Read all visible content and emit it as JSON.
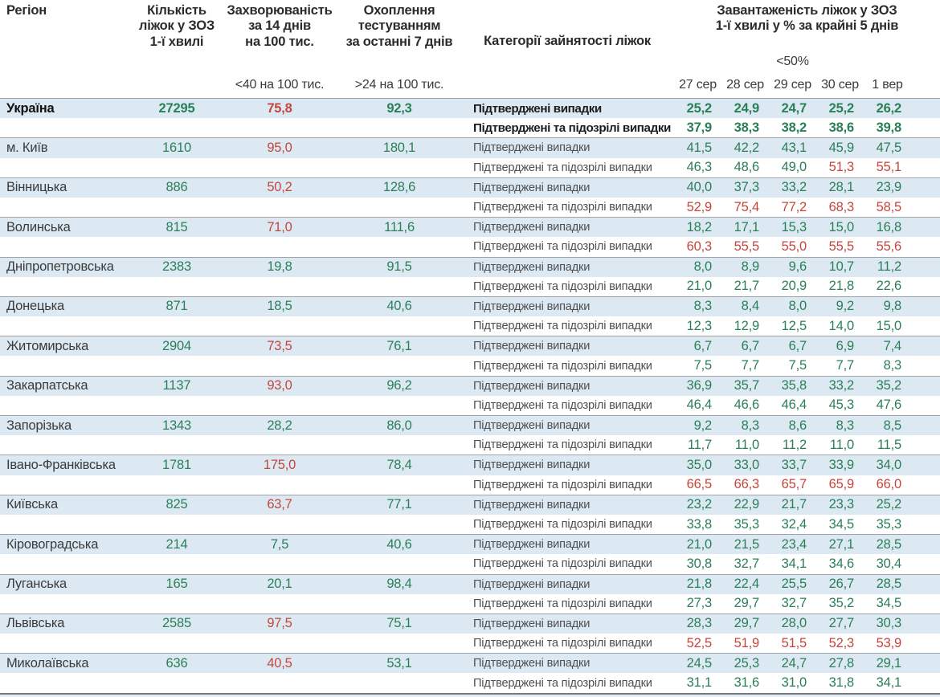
{
  "colors": {
    "green": "#2b7f57",
    "red": "#c5463d",
    "row_highlight": "#dce9f3"
  },
  "thresholds": {
    "incidence_red_at": 40,
    "load_red_at": 50
  },
  "columns": {
    "region_label": "Регіон",
    "beds_label": "Кількість\nліжок у ЗОЗ\n1-ї хвилі",
    "incidence_label": "Захворюваність\nза 14 днів\nна 100 тис.",
    "testing_label": "Охоплення\nтестуванням\nза останні 7 днів",
    "category_label": "Категорії зайнятості ліжок",
    "load_label": "Завантаженість ліжок у ЗОЗ\n1-ї хвилі у % за крайні 5 днів",
    "incidence_threshold_label": "<40 на 100 тис.",
    "testing_threshold_label": ">24 на 100 тис.",
    "load_threshold_label": "<50%",
    "dates": [
      "27 сер",
      "28 сер",
      "29 сер",
      "30 сер",
      "1 вер"
    ]
  },
  "row_labels": {
    "confirmed": "Підтверджені випадки",
    "confirmed_suspected": "Підтверджені та підозрілі випадки"
  },
  "regions": [
    {
      "name": "Україна",
      "bold": true,
      "beds": "27295",
      "incidence": "75,8",
      "testing": "92,3",
      "confirmed": [
        "25,2",
        "24,9",
        "24,7",
        "25,2",
        "26,2"
      ],
      "confirmed_suspected": [
        "37,9",
        "38,3",
        "38,2",
        "38,6",
        "39,8"
      ]
    },
    {
      "name": "м. Київ",
      "bold": false,
      "beds": "1610",
      "incidence": "95,0",
      "testing": "180,1",
      "confirmed": [
        "41,5",
        "42,2",
        "43,1",
        "45,9",
        "47,5"
      ],
      "confirmed_suspected": [
        "46,3",
        "48,6",
        "49,0",
        "51,3",
        "55,1"
      ]
    },
    {
      "name": "Вінницька",
      "bold": false,
      "beds": "886",
      "incidence": "50,2",
      "testing": "128,6",
      "confirmed": [
        "40,0",
        "37,3",
        "33,2",
        "28,1",
        "23,9"
      ],
      "confirmed_suspected": [
        "52,9",
        "75,4",
        "77,2",
        "68,3",
        "58,5"
      ]
    },
    {
      "name": "Волинська",
      "bold": false,
      "beds": "815",
      "incidence": "71,0",
      "testing": "111,6",
      "confirmed": [
        "18,2",
        "17,1",
        "15,3",
        "15,0",
        "16,8"
      ],
      "confirmed_suspected": [
        "60,3",
        "55,5",
        "55,0",
        "55,5",
        "55,6"
      ]
    },
    {
      "name": "Дніпропетровська",
      "bold": false,
      "beds": "2383",
      "incidence": "19,8",
      "testing": "91,5",
      "confirmed": [
        "8,0",
        "8,9",
        "9,6",
        "10,7",
        "11,2"
      ],
      "confirmed_suspected": [
        "21,0",
        "21,7",
        "20,9",
        "21,8",
        "22,6"
      ]
    },
    {
      "name": "Донецька",
      "bold": false,
      "beds": "871",
      "incidence": "18,5",
      "testing": "40,6",
      "confirmed": [
        "8,3",
        "8,4",
        "8,0",
        "9,2",
        "9,8"
      ],
      "confirmed_suspected": [
        "12,3",
        "12,9",
        "12,5",
        "14,0",
        "15,0"
      ]
    },
    {
      "name": "Житомирська",
      "bold": false,
      "beds": "2904",
      "incidence": "73,5",
      "testing": "76,1",
      "confirmed": [
        "6,7",
        "6,7",
        "6,7",
        "6,9",
        "7,4"
      ],
      "confirmed_suspected": [
        "7,5",
        "7,7",
        "7,5",
        "7,7",
        "8,3"
      ]
    },
    {
      "name": "Закарпатська",
      "bold": false,
      "beds": "1137",
      "incidence": "93,0",
      "testing": "96,2",
      "confirmed": [
        "36,9",
        "35,7",
        "35,8",
        "33,2",
        "35,2"
      ],
      "confirmed_suspected": [
        "46,4",
        "46,6",
        "46,4",
        "45,3",
        "47,6"
      ]
    },
    {
      "name": "Запорізька",
      "bold": false,
      "beds": "1343",
      "incidence": "28,2",
      "testing": "86,0",
      "confirmed": [
        "9,2",
        "8,3",
        "8,6",
        "8,3",
        "8,5"
      ],
      "confirmed_suspected": [
        "11,7",
        "11,0",
        "11,2",
        "11,0",
        "11,5"
      ]
    },
    {
      "name": "Івано-Франківська",
      "bold": false,
      "beds": "1781",
      "incidence": "175,0",
      "testing": "78,4",
      "confirmed": [
        "35,0",
        "33,0",
        "33,7",
        "33,9",
        "34,0"
      ],
      "confirmed_suspected": [
        "66,5",
        "66,3",
        "65,7",
        "65,9",
        "66,0"
      ]
    },
    {
      "name": "Київська",
      "bold": false,
      "beds": "825",
      "incidence": "63,7",
      "testing": "77,1",
      "confirmed": [
        "23,2",
        "22,9",
        "21,7",
        "23,3",
        "25,2"
      ],
      "confirmed_suspected": [
        "33,8",
        "35,3",
        "32,4",
        "34,5",
        "35,3"
      ]
    },
    {
      "name": "Кіровоградська",
      "bold": false,
      "beds": "214",
      "incidence": "7,5",
      "testing": "40,6",
      "confirmed": [
        "21,0",
        "21,5",
        "23,4",
        "27,1",
        "28,5"
      ],
      "confirmed_suspected": [
        "30,8",
        "32,7",
        "34,1",
        "34,6",
        "30,4"
      ]
    },
    {
      "name": "Луганська",
      "bold": false,
      "beds": "165",
      "incidence": "20,1",
      "testing": "98,4",
      "confirmed": [
        "21,8",
        "22,4",
        "25,5",
        "26,7",
        "28,5"
      ],
      "confirmed_suspected": [
        "27,3",
        "29,7",
        "32,7",
        "35,2",
        "34,5"
      ]
    },
    {
      "name": "Львівська",
      "bold": false,
      "beds": "2585",
      "incidence": "97,5",
      "testing": "75,1",
      "confirmed": [
        "28,3",
        "29,7",
        "28,0",
        "27,7",
        "30,3"
      ],
      "confirmed_suspected": [
        "52,5",
        "51,9",
        "51,5",
        "52,3",
        "53,9"
      ]
    },
    {
      "name": "Миколаївська",
      "bold": false,
      "beds": "636",
      "incidence": "40,5",
      "testing": "53,1",
      "confirmed": [
        "24,5",
        "25,3",
        "24,7",
        "27,8",
        "29,1"
      ],
      "confirmed_suspected": [
        "31,1",
        "31,6",
        "31,0",
        "31,8",
        "34,1"
      ]
    }
  ]
}
